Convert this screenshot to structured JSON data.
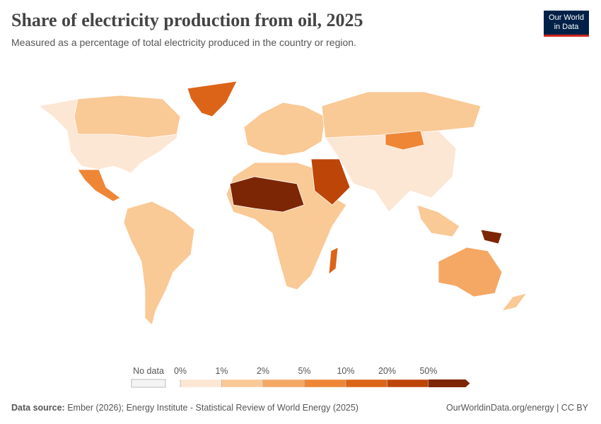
{
  "header": {
    "title": "Share of electricity production from oil, 2025",
    "subtitle": "Measured as a percentage of total electricity produced in the country or region.",
    "logo": [
      "Our World",
      "in Data"
    ]
  },
  "legend": {
    "no_data": "No data",
    "ticks": [
      {
        "value": 0,
        "label": "0%"
      },
      {
        "value": 1,
        "label": "1%"
      },
      {
        "value": 2,
        "label": "2%"
      },
      {
        "value": 5,
        "label": "5%"
      },
      {
        "value": 10,
        "label": "10%"
      },
      {
        "value": 20,
        "label": "20%"
      },
      {
        "value": 50,
        "label": "50%"
      }
    ],
    "colors": [
      "#fce6d4",
      "#f9c996",
      "#f5a764",
      "#ee8636",
      "#dc6418",
      "#bd4508",
      "#7d2605"
    ]
  },
  "footer": {
    "source_label": "Data source:",
    "source": "Ember (2026); Energy Institute - Statistical Review of World Energy (2025)",
    "link": "OurWorldinData.org/energy | CC BY"
  }
}
